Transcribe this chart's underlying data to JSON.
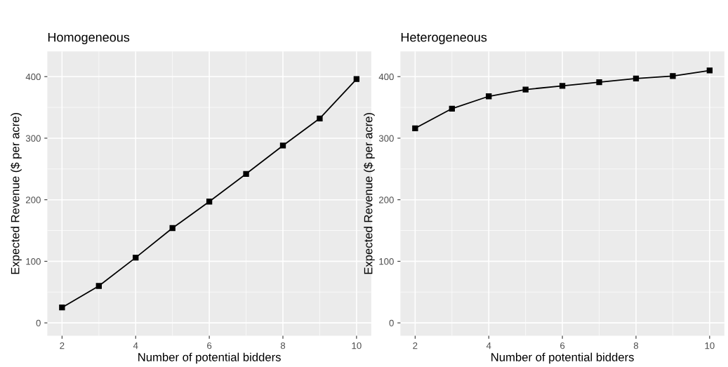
{
  "chart_data": [
    {
      "type": "line",
      "title": "Homogeneous",
      "xlabel": "Number of potential bidders",
      "ylabel": "Expected Revenue ($ per acre)",
      "x": [
        2,
        3,
        4,
        5,
        6,
        7,
        8,
        9,
        10
      ],
      "series": [
        {
          "color": "#000000",
          "values": [
            25,
            60,
            106,
            154,
            197,
            242,
            288,
            332,
            396
          ]
        }
      ],
      "xlim": [
        1.6,
        10.4
      ],
      "xticks": [
        2,
        4,
        6,
        8,
        10
      ],
      "ylim": [
        -21,
        441
      ],
      "yticks": [
        0,
        100,
        200,
        300,
        400
      ],
      "grid": true,
      "marker": "square",
      "line_style": "solid"
    },
    {
      "type": "line",
      "title": "Heterogeneous",
      "xlabel": "Number of potential bidders",
      "ylabel": "Expected Revenue ($ per acre)",
      "x": [
        2,
        3,
        4,
        5,
        6,
        7,
        8,
        9,
        10
      ],
      "series": [
        {
          "color": "#000000",
          "values": [
            316,
            348,
            368,
            379,
            385,
            391,
            397,
            401,
            410
          ]
        }
      ],
      "xlim": [
        1.6,
        10.4
      ],
      "xticks": [
        2,
        4,
        6,
        8,
        10
      ],
      "ylim": [
        -21,
        441
      ],
      "yticks": [
        0,
        100,
        200,
        300,
        400
      ],
      "grid": true,
      "marker": "square",
      "line_style": "solid"
    }
  ]
}
